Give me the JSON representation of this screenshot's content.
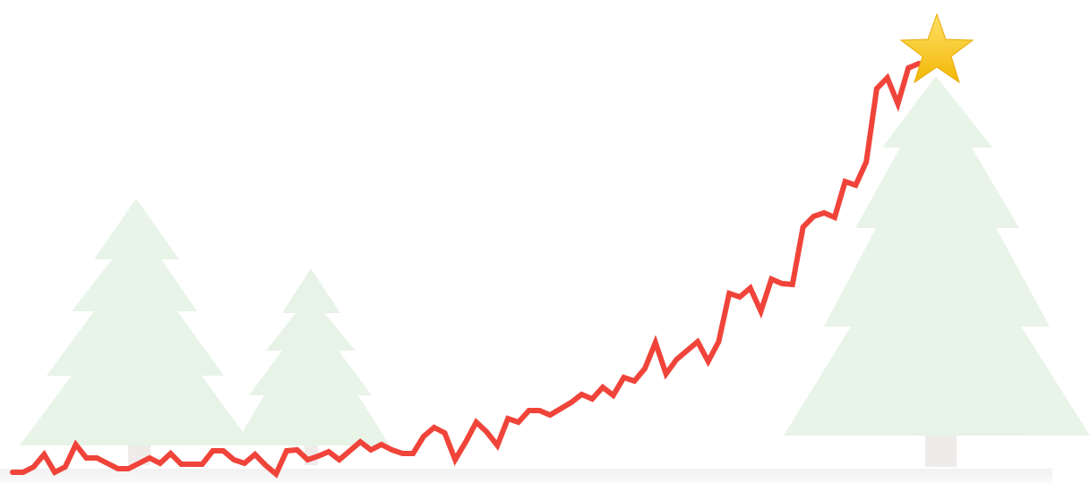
{
  "chart_data": {
    "type": "line",
    "color": "#f0443a",
    "ylim": [
      0,
      470
    ],
    "values": [
      2,
      2,
      8,
      22,
      2,
      8,
      33,
      18,
      18,
      12,
      6,
      6,
      12,
      18,
      12,
      23,
      11,
      11,
      11,
      26,
      26,
      16,
      12,
      22,
      10,
      0,
      26,
      27,
      16,
      20,
      25,
      16,
      26,
      36,
      27,
      33,
      27,
      23,
      23,
      42,
      52,
      46,
      16,
      36,
      58,
      47,
      32,
      62,
      58,
      71,
      71,
      66,
      73,
      80,
      89,
      84,
      97,
      88,
      108,
      104,
      118,
      147,
      112,
      128,
      138,
      148,
      126,
      148,
      202,
      198,
      208,
      182,
      218,
      213,
      212,
      276,
      288,
      292,
      287,
      327,
      323,
      349,
      431,
      443,
      414,
      454,
      459
    ]
  }
}
